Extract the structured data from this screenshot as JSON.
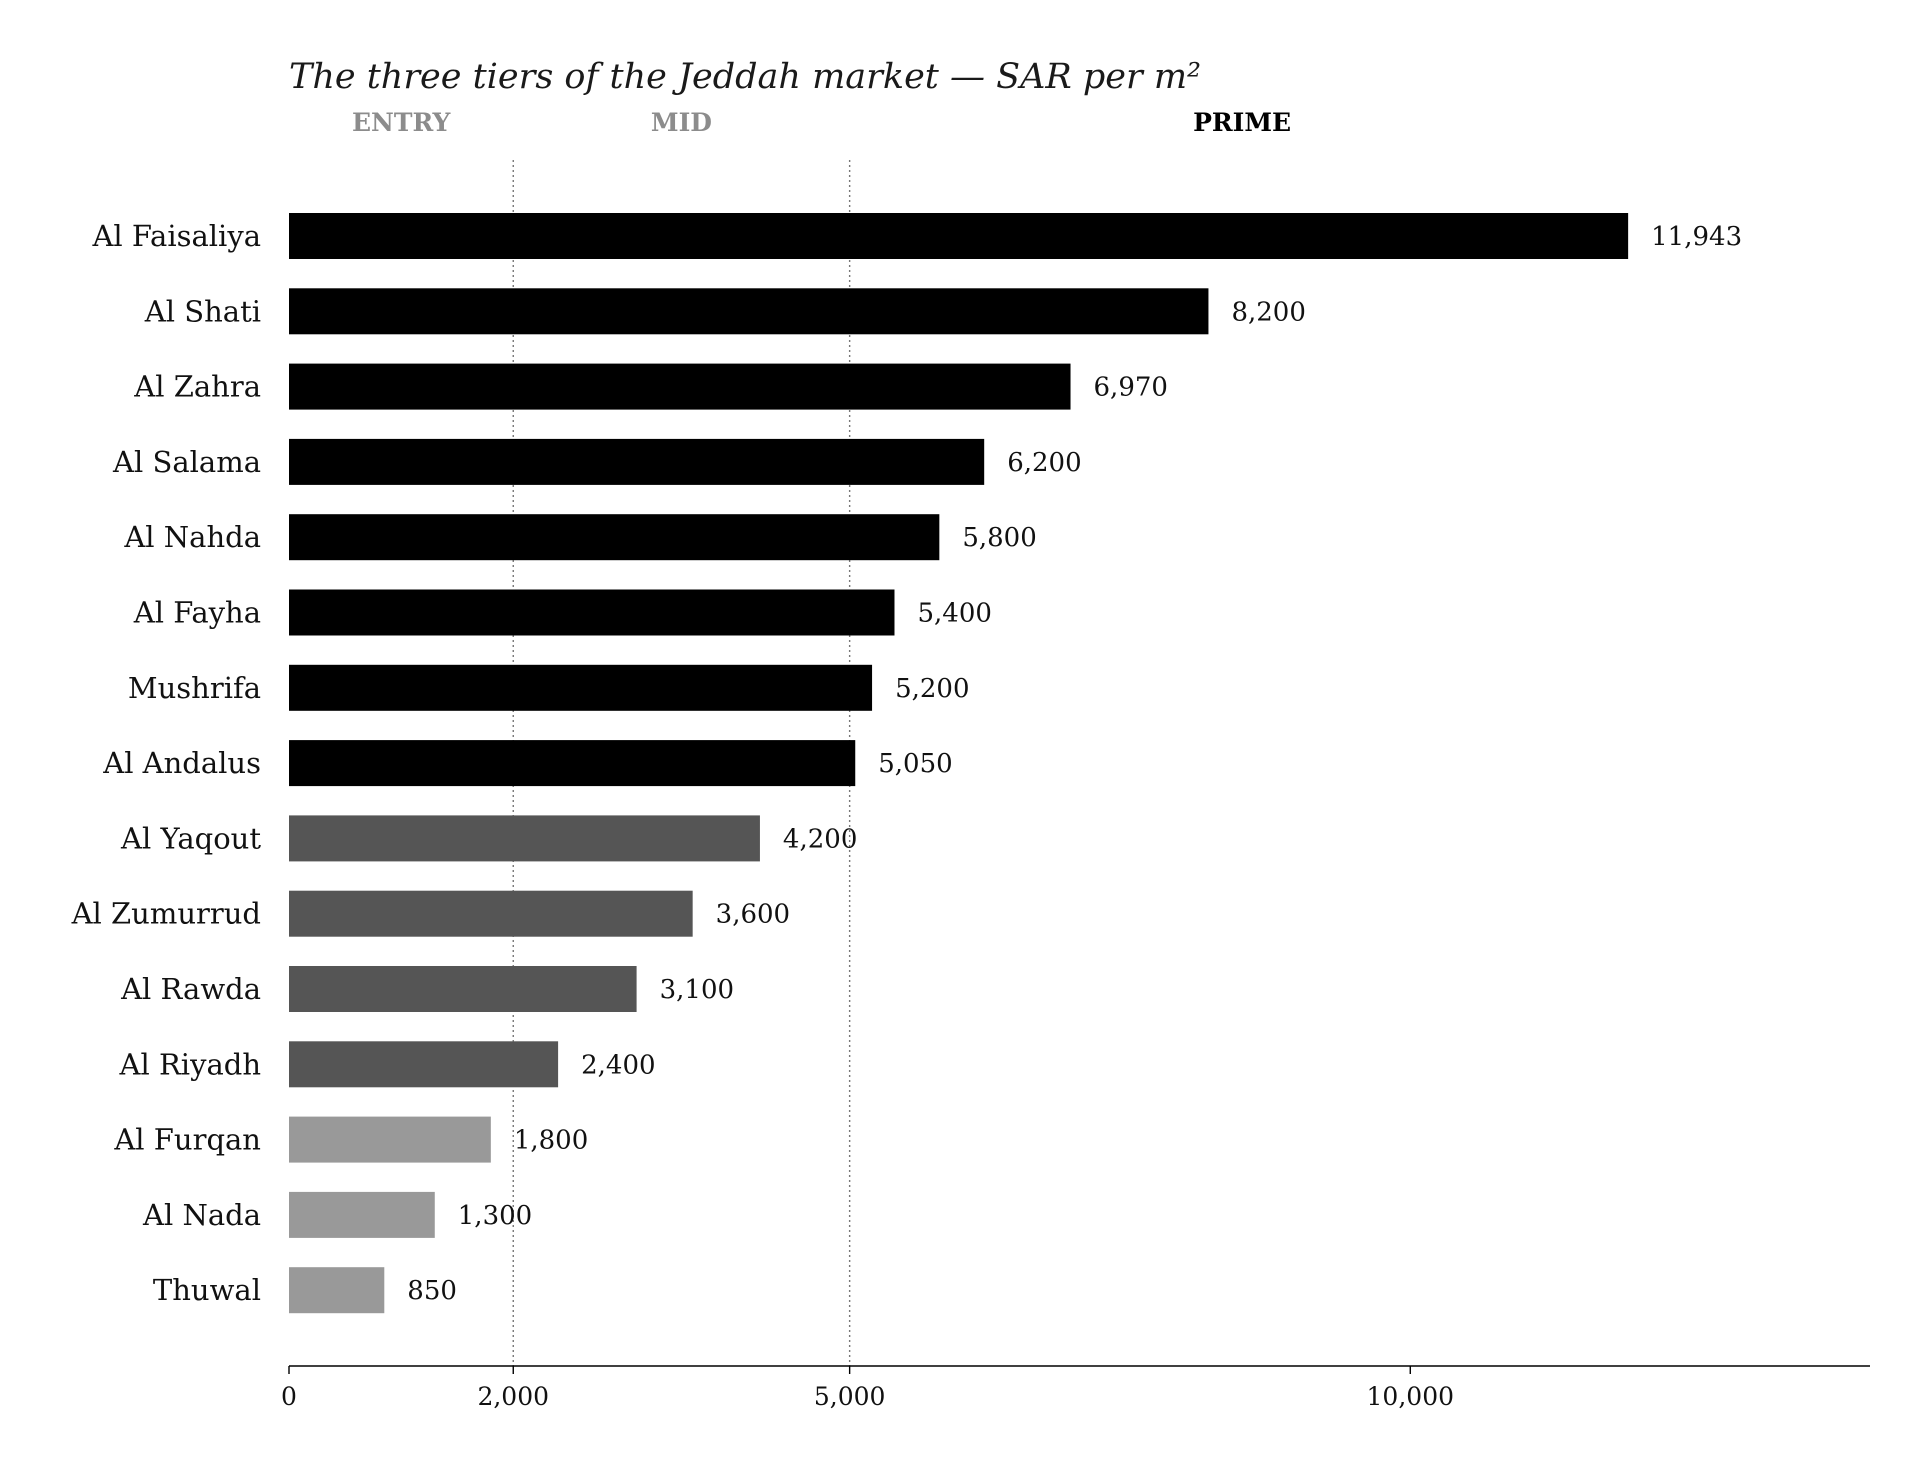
{
  "chart_data": {
    "type": "bar",
    "orientation": "horizontal",
    "title": "The three tiers of the Jeddah market — SAR per m²",
    "xlabel": "",
    "ylabel": "",
    "xlim": [
      0,
      14100
    ],
    "xticks": [
      0,
      2000,
      5000,
      10000
    ],
    "xtick_labels": [
      "0",
      "2,000",
      "5,000",
      "10,000"
    ],
    "grid": false,
    "tier_thresholds": [
      2000,
      5000
    ],
    "tiers": [
      {
        "name": "ENTRY",
        "label_color": "#8c8c8c",
        "bar_color": "#999999"
      },
      {
        "name": "MID",
        "label_color": "#8c8c8c",
        "bar_color": "#555555"
      },
      {
        "name": "PRIME",
        "label_color": "#000000",
        "bar_color": "#000000"
      }
    ],
    "categories": [
      "Al Faisaliya",
      "Al Shati",
      "Al Zahra",
      "Al Salama",
      "Al Nahda",
      "Al Fayha",
      "Mushrifa",
      "Al Andalus",
      "Al Yaqout",
      "Al Zumurrud",
      "Al Rawda",
      "Al Riyadh",
      "Al Furqan",
      "Al Nada",
      "Thuwal"
    ],
    "values": [
      11943,
      8200,
      6970,
      6200,
      5800,
      5400,
      5200,
      5050,
      4200,
      3600,
      3100,
      2400,
      1800,
      1300,
      850
    ],
    "value_labels": [
      "11,943",
      "8,200",
      "6,970",
      "6,200",
      "5,800",
      "5,400",
      "5,200",
      "5,050",
      "4,200",
      "3,600",
      "3,100",
      "2,400",
      "1,800",
      "1,300",
      "850"
    ],
    "bar_tiers": [
      "PRIME",
      "PRIME",
      "PRIME",
      "PRIME",
      "PRIME",
      "PRIME",
      "PRIME",
      "PRIME",
      "MID",
      "MID",
      "MID",
      "MID",
      "ENTRY",
      "ENTRY",
      "ENTRY"
    ]
  }
}
